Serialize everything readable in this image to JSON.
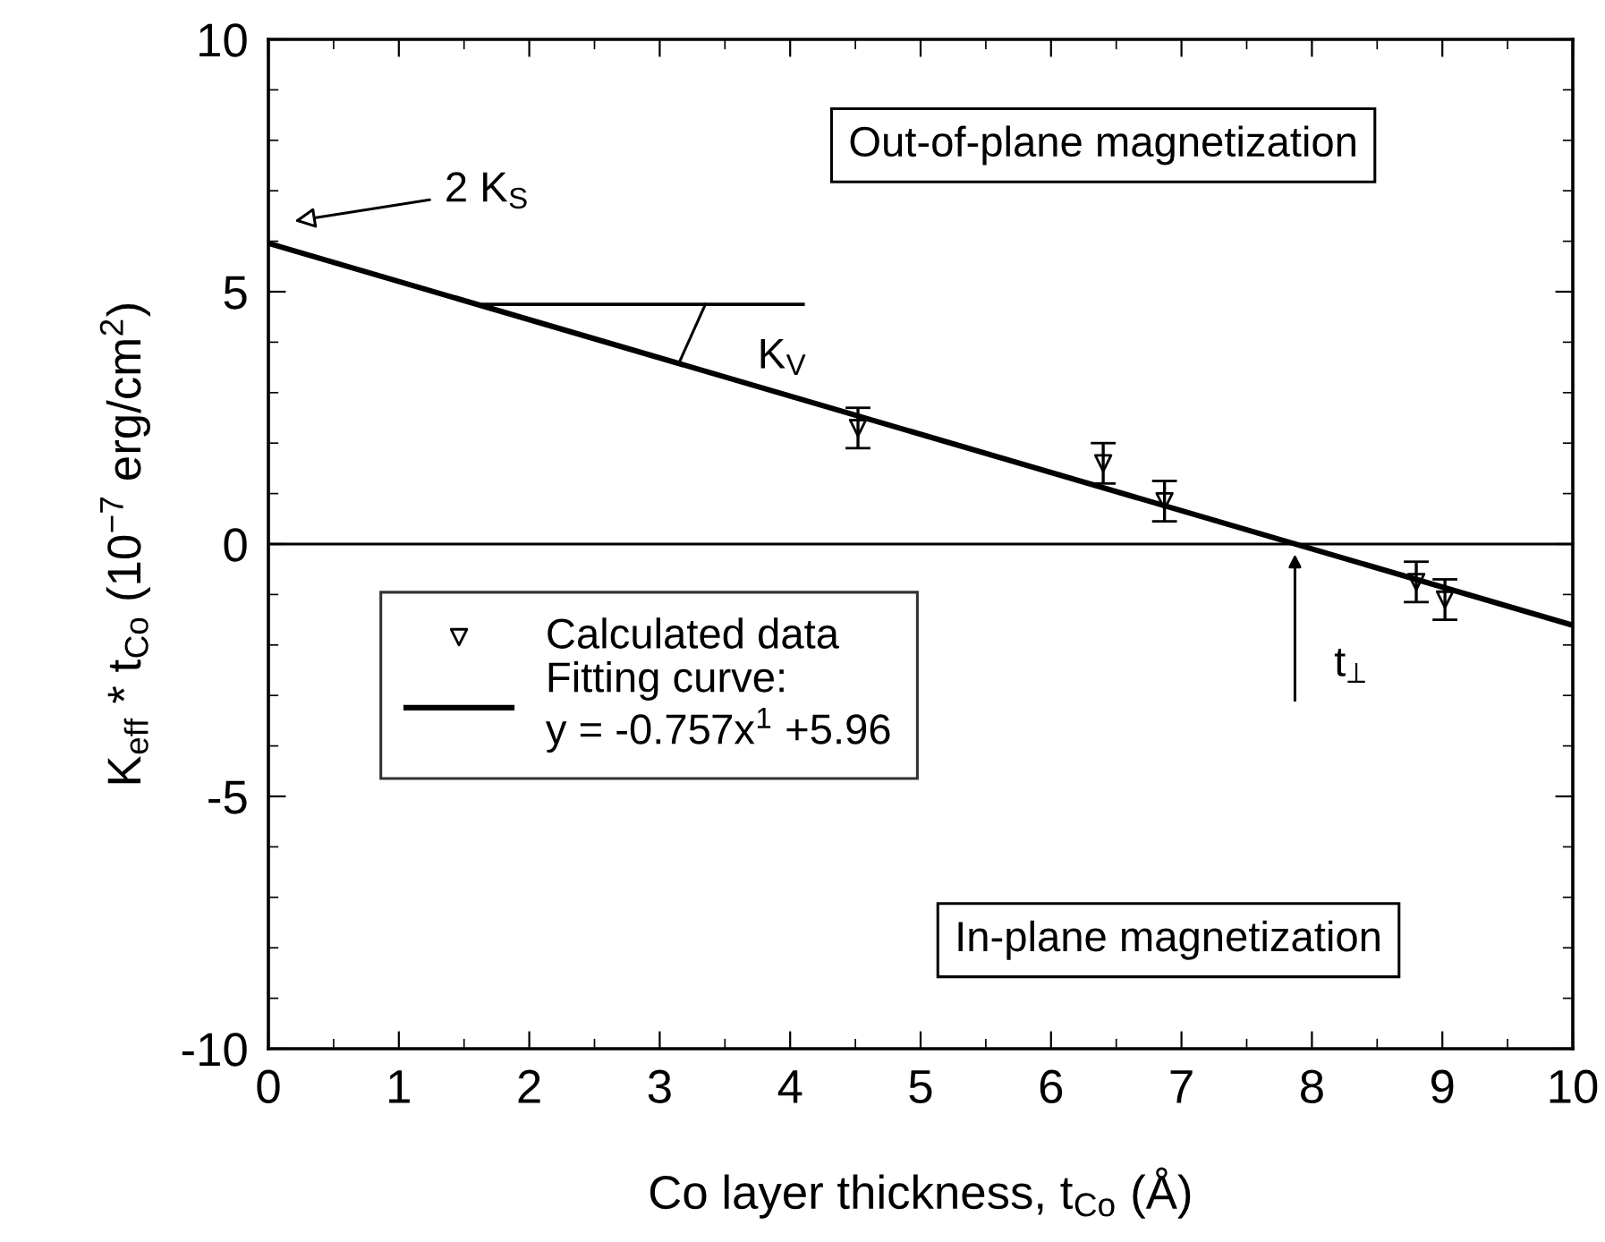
{
  "chart_data": {
    "type": "scatter",
    "xlabel": "Co layer thickness, t$_{Co}$ (Å)",
    "ylabel": "K$_{eff}$ * t$_{Co}$ (10$^{−7}$ erg/cm$^{2}$)",
    "xlim": [
      0,
      10
    ],
    "xticks": [
      0,
      1,
      2,
      3,
      4,
      5,
      6,
      7,
      8,
      9,
      10
    ],
    "ylim": [
      -10,
      10
    ],
    "yticks": [
      -10,
      -5,
      0,
      5,
      10
    ],
    "series": [
      {
        "name": "Calculated data",
        "color": "#000000",
        "marker": "triangle",
        "x": [
          4.52,
          6.4,
          6.87,
          8.8,
          9.02
        ],
        "values": [
          2.3,
          1.6,
          0.85,
          -0.75,
          -1.1
        ],
        "errors": [
          0.4,
          0.4,
          0.4,
          0.4,
          0.4
        ]
      },
      {
        "name": "Fitting curve:\ny = -0.757x$^{1}$ +5.96",
        "type": "line",
        "color": "#000000",
        "line_style": "solid",
        "marker": "none",
        "x": [
          0,
          10
        ],
        "values": [
          5.96,
          -1.61
        ]
      }
    ],
    "ref_lines": [
      {
        "axis": "y",
        "value": 0,
        "color": "#000000",
        "line_style": "solid"
      }
    ],
    "annotations": [
      "2 K$_{S}$",
      {
        "text": "K$_{V}$",
        "x": 3.2,
        "y": 3.5
      },
      {
        "text": "t$_{⊥}$",
        "x": 7.87,
        "y": 0
      },
      "Out-of-plane magnetization",
      "In-plane magnetization"
    ],
    "legend": "left",
    "grid": false
  }
}
